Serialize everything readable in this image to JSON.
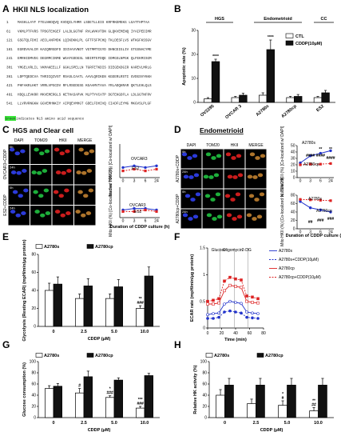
{
  "panel_labels": {
    "A": "A",
    "B": "B",
    "C": "C",
    "D": "D",
    "E": "E",
    "F": "F",
    "G": "G",
    "H": "H"
  },
  "panelA": {
    "title": "HKII NLS localization",
    "lines": [
      {
        "num": "1",
        "seq": "MASHLLAYF FTELNHDQVQ KVDQILYHMR LSDETLLEIS KRFRKEMEKG LGATTHPTAA"
      },
      {
        "num": "61",
        "seq": "VKMLPTFVRS TPDGTEHGEF LALDLGGTNF RVLWVKVTDN GLQKVEMENQ IYAIPEDIMR"
      },
      {
        "num": "121",
        "seq": "GSGTQLFDHI AECLANFMDK LQIKDKKLPL GFTFSFPCHQ TKLDESFLVS WTKGFKSSGV"
      },
      {
        "num": "181",
        "seq": "EGRDVVALIR KAIQRRGDFD IDIVAVVNDT VGTMMTCGYD DHNCEIGLIV GTGSNACYME"
      },
      {
        "num": "241",
        "seq": "EMRHIDMVEG DEGRMCINME WGAFGDDGSL NDIRTEFDQE IDMGSLNPGK QLFEKMISGM"
      },
      {
        "num": "301",
        "seq": "YMGELVRLIL VKMAKEELLF GGKLSPELLN TGRFETKDIS DIEGEKDGIR KAREVLMRLG"
      },
      {
        "num": "361",
        "seq": "LDPTQEDCVA THRICQIVST RSASLCAATL AAVLQRIKEN KGEERLRSTI GVDGSVYKKH"
      },
      {
        "num": "421",
        "seq": "PHFAKRLHKT VRRLVPGCDV RFLRSEDGSG KGAAMVTAVA YRLADQHRAR QKTLEHLQLS"
      },
      {
        "num": "481",
        "seq": "HDQLLEVKRR MKVEMERGLS KETHASAPVK MLPTYVCATP DGTEKGDFLA LDLGGTNFRV"
      },
      {
        "num": "541",
        "seq": "LLVRVRNGKW GGVEMHNKIY AIPQEVMHGT GDELFDHIVQ CIADFLEYMG MKGVSLPLGF"
      }
    ],
    "footnote_highlight": "Green",
    "footnote_rest": " indicates NLS amino acid sequence",
    "highlight_color": "#39e639"
  },
  "panelC": {
    "title": "HGS and Clear cell",
    "img_headers": [
      "DAPI",
      "TOM20",
      "HKII",
      "MERGE"
    ],
    "row_labels": [
      "0h",
      "24h",
      "0h",
      "24h"
    ],
    "side_labels": [
      "OVCAR3+CDDP",
      "ES2+CDDP"
    ],
    "nuc_ylabel": "Nuclear HKII (%) [Co-localized w/ DAPI]",
    "mito_ylabel": "Mito HKII (%) [Co-localized w/ TOM20]",
    "xlabel": "Duration of CDDP culture (h)",
    "legend": [
      "OVCAR3",
      "ES2"
    ]
  },
  "panelD": {
    "title": "Endometrioid",
    "img_headers": [
      "DAPI",
      "TOM20",
      "HKII",
      "MERGE"
    ],
    "row_labels": [
      "0h",
      "24h",
      "0h",
      "24h"
    ],
    "side_labels": [
      "A2780s+CDDP",
      "A2780cp+CDDP"
    ],
    "nuc_ylabel": "Nuclear HKII (%) [Co-localized w/ DAPI]",
    "mito_ylabel": "Mito HKII (%) [Co-localized w/ TOM20]",
    "xlabel": "Duration of CDDP culture (h)",
    "legend": [
      "A2780s",
      "A2780cp"
    ],
    "nuc_stars": [
      "####",
      "####",
      "**",
      "**",
      "####"
    ],
    "mito_stars": [
      "##",
      "###",
      "###"
    ]
  },
  "colors": {
    "blue": "#2233cc",
    "red": "#dd2222",
    "black": "#111111",
    "white": "#ffffff"
  },
  "chart_data": [
    {
      "id": "B",
      "type": "bar",
      "title": "",
      "group_labels": [
        "HGS",
        "Endometrioid",
        "CC"
      ],
      "categories": [
        "OV2295",
        "OVCAR 3",
        "A2780s",
        "A2780cp",
        "ES2"
      ],
      "series": [
        {
          "name": "CTL",
          "values": [
            1.5,
            2,
            3,
            2,
            2
          ]
        },
        {
          "name": "CDDP(10μM)",
          "values": [
            17,
            3,
            22,
            2.5,
            4
          ]
        }
      ],
      "errors": [
        [
          0.5,
          0.5,
          1,
          0.5,
          0.5
        ],
        [
          1,
          0.8,
          4,
          0.8,
          1
        ]
      ],
      "ylabel": "Apoptotic rate (%)",
      "ylim": [
        0,
        30
      ],
      "yticks": [
        0,
        10,
        20,
        30
      ],
      "stars": [
        "****",
        "",
        "****",
        "",
        ""
      ]
    },
    {
      "id": "C-nuc",
      "type": "line",
      "x": [
        0,
        3,
        6,
        24
      ],
      "series": [
        {
          "name": "OVCAR3",
          "values": [
            0.3,
            0.35,
            0.3,
            0.35
          ]
        },
        {
          "name": "ES2",
          "values": [
            0.2,
            0.25,
            0.2,
            0.25
          ]
        }
      ],
      "ylim": [
        0,
        1
      ],
      "xticks": [
        "0",
        "3",
        "6",
        "24"
      ]
    },
    {
      "id": "C-mito",
      "type": "line",
      "x": [
        0,
        3,
        6,
        24
      ],
      "series": [
        {
          "name": "OVCAR3",
          "values": [
            0.25,
            0.3,
            0.3,
            0.25
          ]
        },
        {
          "name": "ES2",
          "values": [
            0.2,
            0.2,
            0.25,
            0.2
          ]
        }
      ],
      "ylim": [
        0,
        1
      ],
      "xticks": [
        "0",
        "3",
        "6",
        "24"
      ]
    },
    {
      "id": "D-nuc",
      "type": "line",
      "x": [
        0,
        3,
        6,
        24
      ],
      "series": [
        {
          "name": "A2780s",
          "values": [
            23,
            34,
            38,
            42
          ]
        },
        {
          "name": "A2780cp",
          "values": [
            20,
            21,
            21,
            22
          ]
        }
      ],
      "ylim": [
        0,
        50
      ],
      "yticks": [
        0,
        10,
        20,
        30,
        40,
        50
      ],
      "xticks": [
        "0",
        "3",
        "6",
        "24"
      ]
    },
    {
      "id": "D-mito",
      "type": "line",
      "x": [
        0,
        3,
        6,
        24
      ],
      "series": [
        {
          "name": "A2780s",
          "values": [
            65,
            50,
            45,
            40
          ]
        },
        {
          "name": "A2780cp",
          "values": [
            70,
            69,
            68,
            67
          ]
        }
      ],
      "ylim": [
        0,
        80
      ],
      "yticks": [
        0,
        20,
        40,
        60,
        80
      ],
      "xticks": [
        "0",
        "3",
        "6",
        "24"
      ]
    },
    {
      "id": "E",
      "type": "bar",
      "categories": [
        "0",
        "2.5",
        "5.0",
        "10.0"
      ],
      "series": [
        {
          "name": "A2780s",
          "values": [
            40,
            31,
            31,
            20
          ]
        },
        {
          "name": "A2780cp",
          "values": [
            47,
            45,
            44,
            56
          ]
        }
      ],
      "errors": [
        [
          8,
          5,
          5,
          3
        ],
        [
          8,
          8,
          8,
          10
        ]
      ],
      "ylabel": "Glycolysis (Resting ECAR) (mpH/min/μg protein)",
      "xlabel": "CDDP (μM)",
      "ylim": [
        0,
        80
      ],
      "yticks": [
        0,
        20,
        40,
        60,
        80
      ],
      "stars": [
        "",
        "",
        "",
        "**"
      ],
      "hashes": [
        "",
        "",
        "",
        "###"
      ]
    },
    {
      "id": "F",
      "type": "line",
      "x": [
        0,
        8,
        16,
        24,
        32,
        40,
        48,
        56,
        64,
        72
      ],
      "series": [
        {
          "name": "A2780s",
          "values": [
            0.25,
            0.27,
            0.28,
            0.45,
            0.5,
            0.48,
            0.46,
            0.3,
            0.28,
            0.27
          ]
        },
        {
          "name": "A2780s+CDDP(10μM)",
          "values": [
            0.18,
            0.18,
            0.2,
            0.3,
            0.32,
            0.3,
            0.28,
            0.2,
            0.19,
            0.18
          ]
        },
        {
          "name": "A2780cp",
          "values": [
            0.45,
            0.45,
            0.47,
            0.7,
            0.8,
            0.78,
            0.76,
            0.5,
            0.48,
            0.47
          ]
        },
        {
          "name": "A2780cp+CDDP(10μM)",
          "values": [
            0.5,
            0.52,
            0.55,
            0.88,
            0.95,
            0.92,
            0.9,
            0.6,
            0.58,
            0.55
          ]
        }
      ],
      "ylabel": "ECAR rate (mpH/min/μg protein)",
      "xlabel": "Time (min)",
      "xlim": [
        0,
        80
      ],
      "ylim": [
        0,
        1.5
      ],
      "yticks": [
        0,
        0.5,
        1.0,
        1.5
      ],
      "xticks": [
        0,
        20,
        40,
        60,
        80
      ],
      "annotations": [
        "Glucose",
        "Oligomycin",
        "2-DG"
      ]
    },
    {
      "id": "G",
      "type": "bar",
      "categories": [
        "0",
        "2.5",
        "5.0",
        "10.0"
      ],
      "series": [
        {
          "name": "A2780s",
          "values": [
            52,
            44,
            36,
            17
          ]
        },
        {
          "name": "A2780cp",
          "values": [
            56,
            73,
            67,
            75
          ]
        }
      ],
      "errors": [
        [
          5,
          8,
          3,
          3
        ],
        [
          5,
          10,
          4,
          4
        ]
      ],
      "ylabel": "Glucose consumption (%)",
      "xlabel": "CDDP (μM)",
      "ylim": [
        0,
        100
      ],
      "yticks": [
        0,
        20,
        40,
        60,
        80,
        100
      ],
      "stars": [
        "",
        "",
        "*",
        "***"
      ],
      "hashes": [
        "",
        "#",
        "###",
        "###"
      ]
    },
    {
      "id": "H",
      "type": "bar",
      "categories": [
        "0",
        "2.5",
        "5.0",
        "10.0"
      ],
      "series": [
        {
          "name": "A2780s",
          "values": [
            40,
            25,
            22,
            12
          ]
        },
        {
          "name": "A2780cp",
          "values": [
            58,
            58,
            58,
            58
          ]
        }
      ],
      "errors": [
        [
          10,
          8,
          8,
          6
        ],
        [
          12,
          12,
          12,
          12
        ]
      ],
      "ylabel": "Relative HK activity (%)",
      "xlabel": "CDDP (μM)",
      "ylim": [
        0,
        100
      ],
      "yticks": [
        0,
        20,
        40,
        60,
        80,
        100
      ],
      "stars": [
        "",
        "",
        "*",
        "**"
      ],
      "hashes": [
        "",
        "",
        "#",
        "##"
      ]
    }
  ]
}
